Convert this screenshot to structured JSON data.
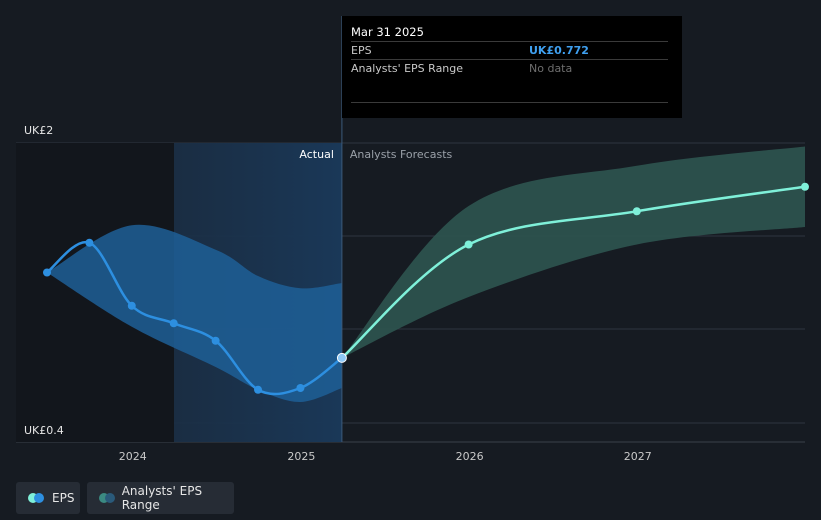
{
  "tooltip": {
    "date": "Mar 31 2025",
    "eps_label": "EPS",
    "eps_value": "UK£0.772",
    "range_label": "Analysts' EPS Range",
    "range_value": "No data"
  },
  "region_labels": {
    "actual": "Actual",
    "forecast": "Analysts Forecasts"
  },
  "legend": {
    "eps": "EPS",
    "range": "Analysts' EPS Range"
  },
  "colors": {
    "background": "#161b22",
    "eps_line": "#2d8fe0",
    "forecast_line": "#7ff0d9",
    "actual_band": "#1f5f96",
    "forecast_band": "#2e5550"
  },
  "chart_data": {
    "type": "line",
    "ylim": [
      0.4,
      2
    ],
    "y_tick_labels": [
      "UK£2",
      "UK£0.4"
    ],
    "x_tick_labels": [
      "2024",
      "2025",
      "2026",
      "2027"
    ],
    "series": [
      {
        "name": "EPS",
        "x": [
          "2023-06-30",
          "2023-09-30",
          "2023-12-31",
          "2024-03-31",
          "2024-06-30",
          "2024-09-30",
          "2024-12-31",
          "2025-03-31"
        ],
        "y": [
          1.26,
          1.43,
          1.07,
          0.97,
          0.87,
          0.59,
          0.6,
          0.772
        ]
      },
      {
        "name": "EPS forecast",
        "x": [
          "2025-03-31",
          "2025-12-31",
          "2026-12-31",
          "2027-12-31"
        ],
        "y": [
          0.772,
          1.42,
          1.61,
          1.75
        ]
      }
    ],
    "ranges": [
      {
        "name": "Analysts' EPS Range (past)",
        "x": [
          "2023-06-30",
          "2023-12-31",
          "2024-06-30",
          "2024-09-30",
          "2024-12-31",
          "2025-03-31"
        ],
        "low": [
          1.26,
          0.95,
          0.72,
          0.59,
          0.52,
          0.6
        ],
        "high": [
          1.26,
          1.53,
          1.39,
          1.24,
          1.17,
          1.2
        ]
      },
      {
        "name": "Analysts' EPS Range (forecast)",
        "x": [
          "2025-03-31",
          "2025-12-31",
          "2026-12-31",
          "2027-12-31"
        ],
        "low": [
          0.772,
          1.12,
          1.42,
          1.52
        ],
        "high": [
          0.772,
          1.64,
          1.87,
          1.98
        ]
      }
    ]
  }
}
